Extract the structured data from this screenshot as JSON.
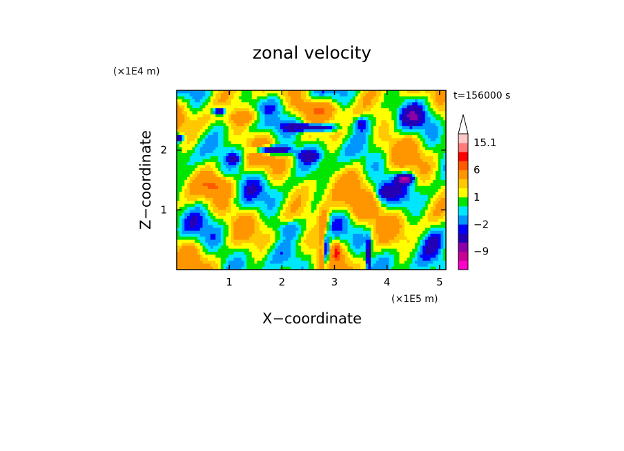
{
  "chart_data": {
    "type": "heatmap",
    "title": "zonal velocity",
    "xlabel": "X−coordinate",
    "ylabel": "Z−coordinate",
    "x_unit": "(×1E5 m)",
    "y_unit": "(×1E4 m)",
    "time_label": "t=156000 s",
    "x_ticks": [
      {
        "value": 1,
        "label": "1"
      },
      {
        "value": 2,
        "label": "2"
      },
      {
        "value": 3,
        "label": "3"
      },
      {
        "value": 4,
        "label": "4"
      },
      {
        "value": 5,
        "label": "5"
      }
    ],
    "y_ticks": [
      {
        "value": 1,
        "label": "1"
      },
      {
        "value": 2,
        "label": "2"
      }
    ],
    "xlim": [
      0,
      5.12
    ],
    "ylim": [
      0,
      3.0
    ],
    "colorbar": {
      "levels": [
        -15,
        -12,
        -9,
        -6,
        -3,
        -2,
        -1,
        0,
        1,
        2,
        3,
        6,
        9,
        12,
        15.1
      ],
      "colors": [
        "#ff00c8",
        "#c80096",
        "#8c00aa",
        "#2400b4",
        "#0000ff",
        "#0096ff",
        "#00e6ff",
        "#00e600",
        "#ffff00",
        "#ffc800",
        "#ff9600",
        "#ff5a00",
        "#ff0000",
        "#ff7a7a",
        "#ffc8c8"
      ],
      "labels": [
        {
          "value": 15.1,
          "label": "15.1"
        },
        {
          "value": 6,
          "label": "6"
        },
        {
          "value": 1,
          "label": "1"
        },
        {
          "value": -2,
          "label": "−2"
        },
        {
          "value": -9,
          "label": "−9"
        }
      ],
      "extend_max": true
    }
  }
}
